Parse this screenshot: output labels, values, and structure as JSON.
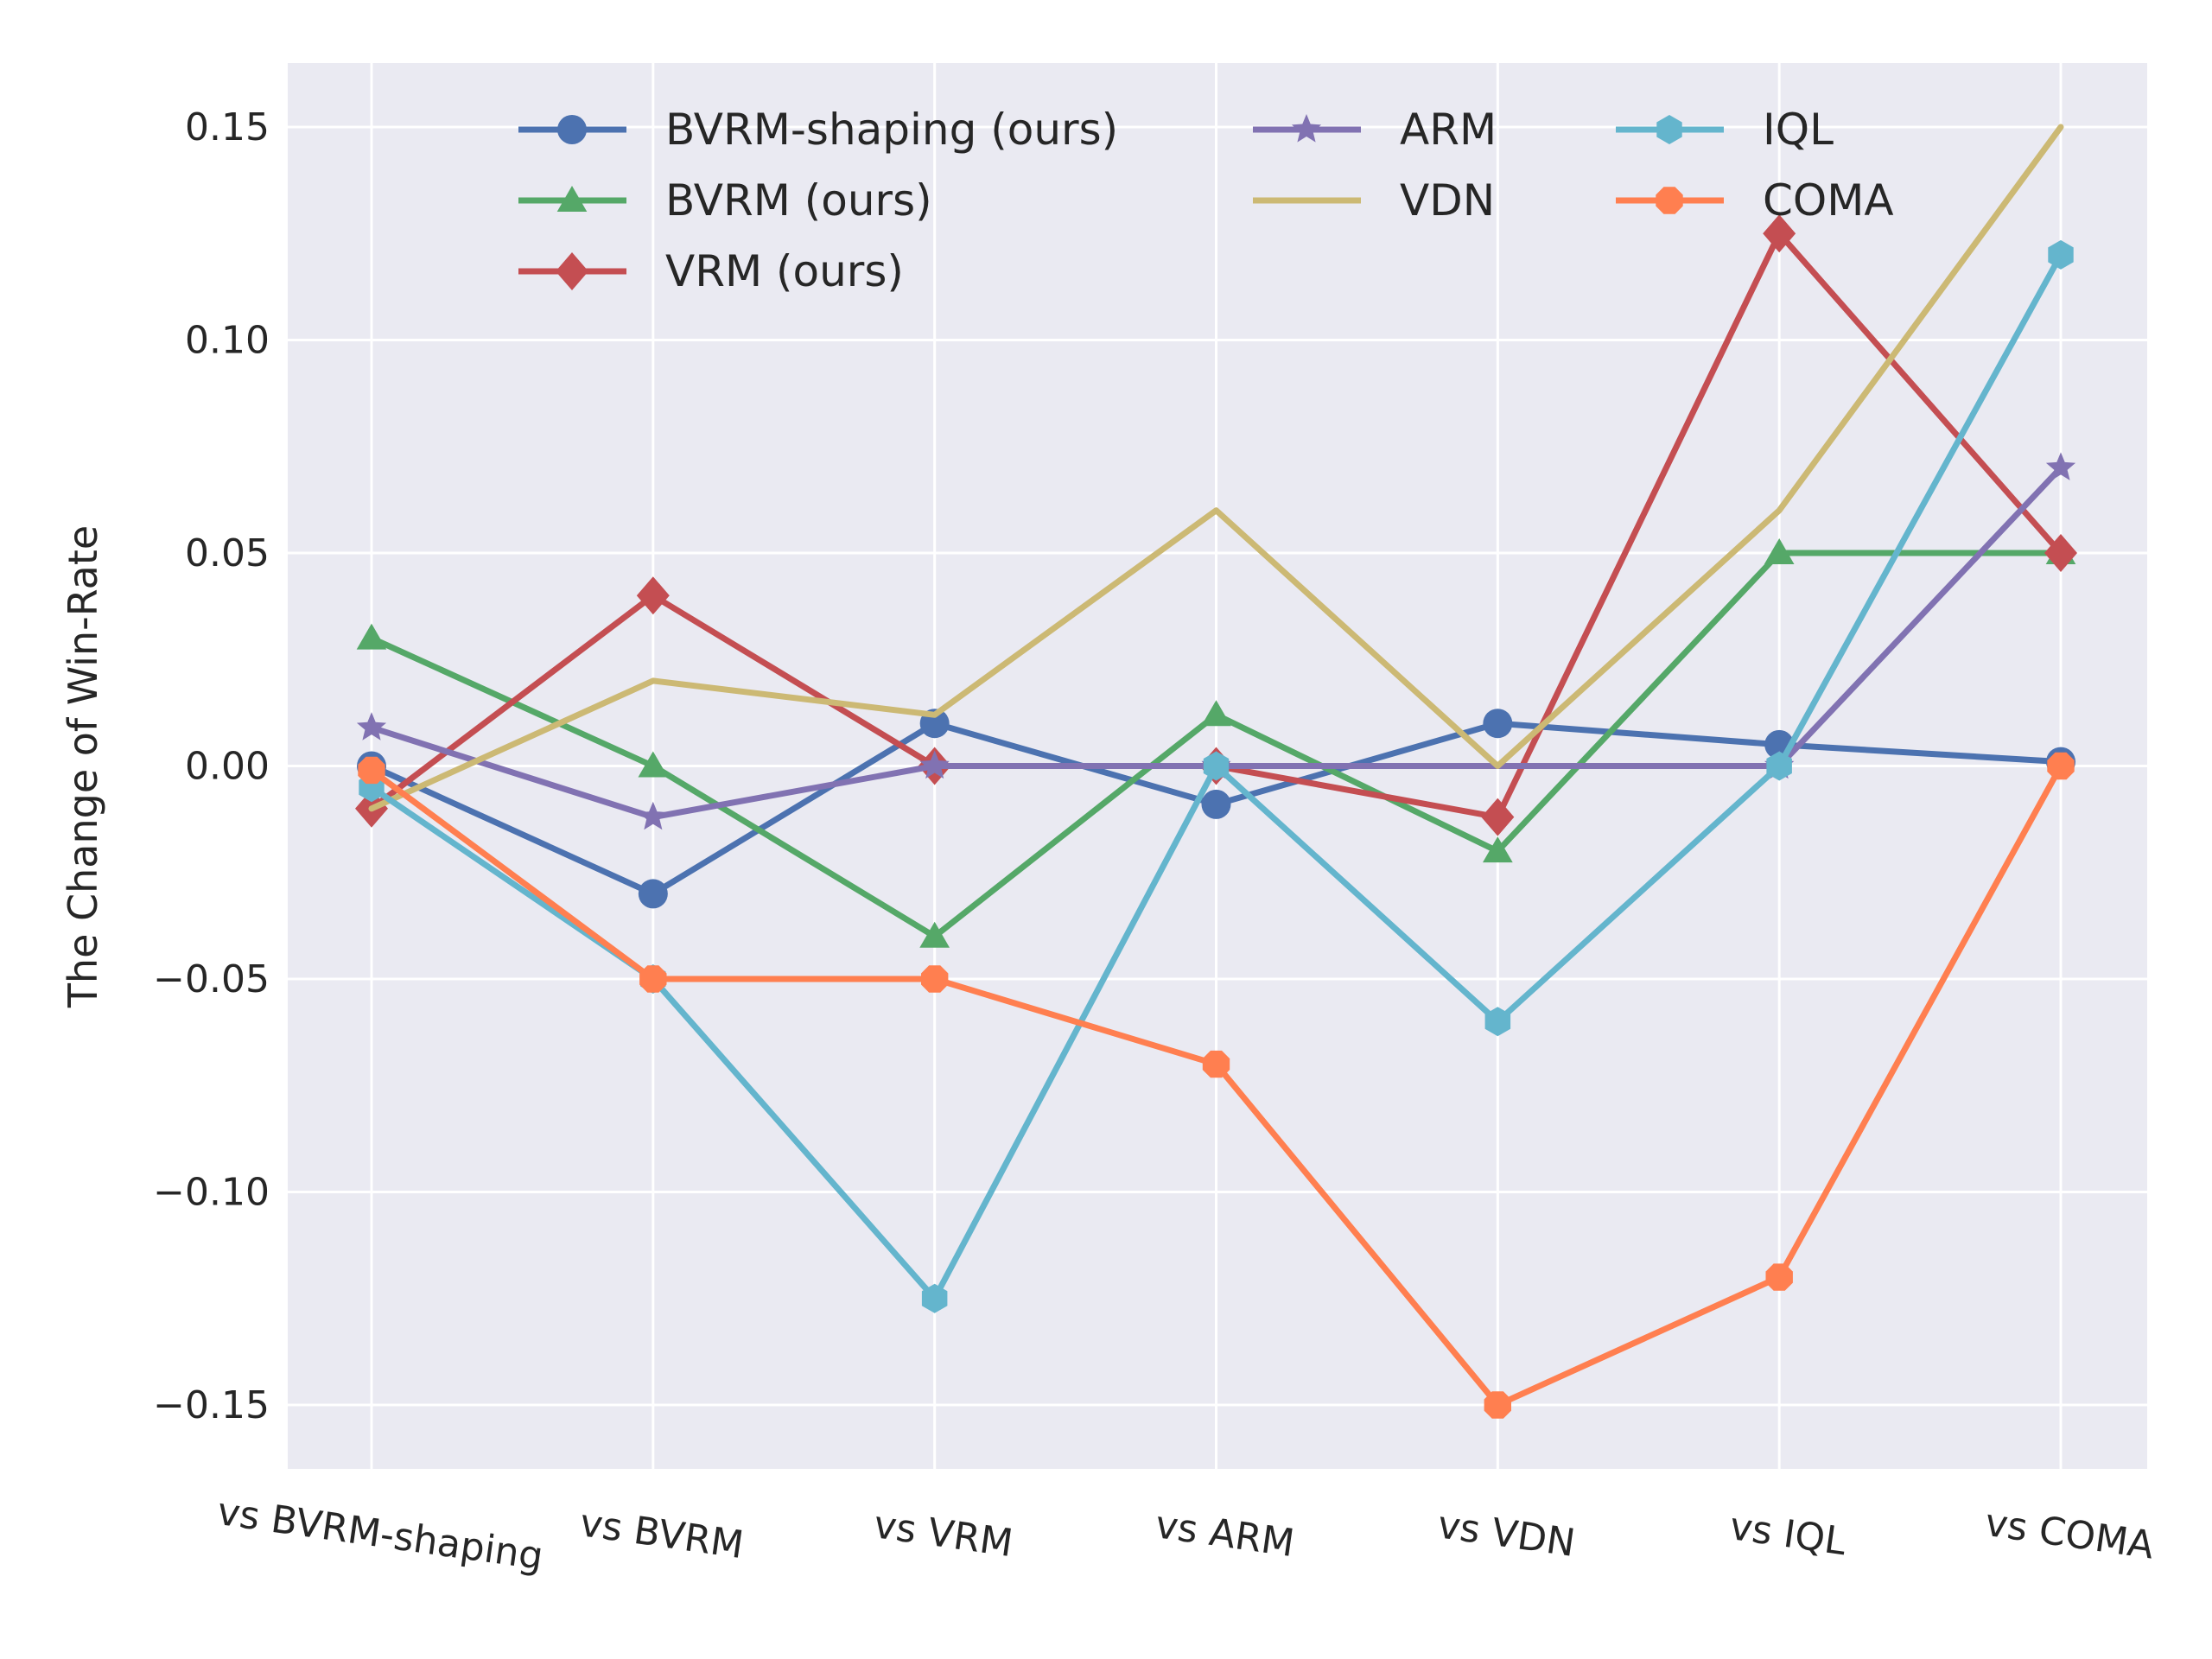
{
  "chart_data": {
    "type": "line",
    "title": "",
    "xlabel": "",
    "ylabel": "The Change of Win-Rate",
    "categories": [
      "vs BVRM-shaping",
      "vs BVRM",
      "vs VRM",
      "vs ARM",
      "vs VDN",
      "vs IQL",
      "vs COMA"
    ],
    "ylim": [
      -0.165,
      0.165
    ],
    "yticks": [
      0.15,
      0.1,
      0.05,
      0.0,
      -0.05,
      -0.1,
      -0.15
    ],
    "ytick_labels": [
      "0.15",
      "0.10",
      "0.05",
      "0.00",
      "−0.05",
      "−0.10",
      "−0.15"
    ],
    "grid": true,
    "legend_position": "top",
    "series": [
      {
        "name": "BVRM-shaping (ours)",
        "color": "#4c72b0",
        "marker": "circle",
        "values": [
          0.0,
          -0.03,
          0.01,
          -0.009,
          0.01,
          0.005,
          0.001
        ]
      },
      {
        "name": "BVRM (ours)",
        "color": "#55a868",
        "marker": "triangle",
        "values": [
          0.03,
          0.0,
          -0.04,
          0.012,
          -0.02,
          0.05,
          0.05
        ]
      },
      {
        "name": "VRM (ours)",
        "color": "#c44e52",
        "marker": "diamond",
        "values": [
          -0.01,
          0.04,
          0.0,
          0.0,
          -0.012,
          0.125,
          0.05
        ]
      },
      {
        "name": "ARM",
        "color": "#8172b2",
        "marker": "star",
        "values": [
          0.009,
          -0.012,
          0.0,
          0.0,
          null,
          0.0,
          0.07
        ]
      },
      {
        "name": "VDN",
        "color": "#ccb974",
        "marker": "none",
        "values": [
          -0.01,
          0.02,
          0.012,
          0.06,
          0.0,
          0.06,
          0.15
        ]
      },
      {
        "name": "IQL",
        "color": "#64b5cd",
        "marker": "hexagon",
        "values": [
          -0.005,
          -0.05,
          -0.125,
          0.0,
          -0.06,
          0.0,
          0.12
        ]
      },
      {
        "name": "COMA",
        "color": "#ff7f50",
        "marker": "octagon",
        "values": [
          -0.001,
          -0.05,
          -0.05,
          -0.07,
          -0.15,
          -0.12,
          0.0
        ]
      }
    ]
  }
}
